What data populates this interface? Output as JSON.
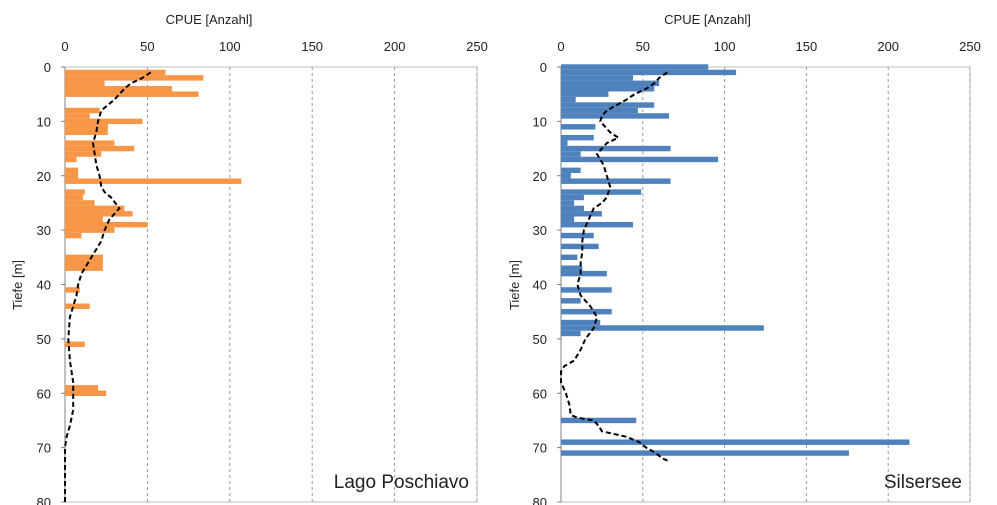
{
  "chart_data": [
    {
      "type": "bar",
      "orientation": "horizontal",
      "panel_label": "Lago Poschiavo",
      "xlabel": "CPUE  [Anzahl]",
      "ylabel": "Tiefe [m]",
      "xlim": [
        0,
        250
      ],
      "ylim": [
        80,
        0
      ],
      "x_ticks": [
        "0",
        "50",
        "100",
        "150",
        "200",
        "250"
      ],
      "y_ticks": [
        "0",
        "10",
        "20",
        "30",
        "40",
        "50",
        "60",
        "70",
        "80"
      ],
      "x_gridlines": true,
      "bar_color": "#F79646",
      "bars": [
        {
          "depth": 1,
          "value": 61
        },
        {
          "depth": 2,
          "value": 84
        },
        {
          "depth": 3,
          "value": 24
        },
        {
          "depth": 4,
          "value": 65
        },
        {
          "depth": 5,
          "value": 81
        },
        {
          "depth": 8,
          "value": 21
        },
        {
          "depth": 9,
          "value": 15
        },
        {
          "depth": 10,
          "value": 47
        },
        {
          "depth": 11,
          "value": 26
        },
        {
          "depth": 12,
          "value": 26
        },
        {
          "depth": 14,
          "value": 30
        },
        {
          "depth": 15,
          "value": 42
        },
        {
          "depth": 16,
          "value": 22
        },
        {
          "depth": 17,
          "value": 7
        },
        {
          "depth": 19,
          "value": 8
        },
        {
          "depth": 20,
          "value": 8
        },
        {
          "depth": 21,
          "value": 107
        },
        {
          "depth": 23,
          "value": 12
        },
        {
          "depth": 24,
          "value": 11
        },
        {
          "depth": 25,
          "value": 18
        },
        {
          "depth": 26,
          "value": 36
        },
        {
          "depth": 27,
          "value": 41
        },
        {
          "depth": 28,
          "value": 23
        },
        {
          "depth": 29,
          "value": 50
        },
        {
          "depth": 30,
          "value": 30
        },
        {
          "depth": 31,
          "value": 10
        },
        {
          "depth": 35,
          "value": 23
        },
        {
          "depth": 36,
          "value": 23
        },
        {
          "depth": 37,
          "value": 23
        },
        {
          "depth": 41,
          "value": 9
        },
        {
          "depth": 44,
          "value": 15
        },
        {
          "depth": 51,
          "value": 12
        },
        {
          "depth": 59,
          "value": 20
        },
        {
          "depth": 60,
          "value": 25
        }
      ],
      "mean_line": {
        "style": "dashed",
        "color": "#000000",
        "points": [
          [
            52,
            1
          ],
          [
            47,
            2
          ],
          [
            40,
            3
          ],
          [
            36,
            4
          ],
          [
            33,
            5
          ],
          [
            30,
            6
          ],
          [
            26,
            7
          ],
          [
            22,
            8
          ],
          [
            20,
            10
          ],
          [
            19,
            12
          ],
          [
            17,
            14
          ],
          [
            18,
            16
          ],
          [
            19,
            18
          ],
          [
            21,
            20
          ],
          [
            22,
            22
          ],
          [
            24,
            23
          ],
          [
            28,
            24
          ],
          [
            33,
            26
          ],
          [
            27,
            28
          ],
          [
            24,
            30
          ],
          [
            22,
            32
          ],
          [
            18,
            34
          ],
          [
            14,
            36
          ],
          [
            10,
            38
          ],
          [
            8,
            40
          ],
          [
            7,
            42
          ],
          [
            5,
            44
          ],
          [
            3,
            46
          ],
          [
            2,
            50
          ],
          [
            3,
            54
          ],
          [
            5,
            58
          ],
          [
            5,
            60
          ],
          [
            5,
            63
          ],
          [
            3,
            66
          ],
          [
            1,
            68
          ],
          [
            0,
            70
          ],
          [
            0,
            75
          ],
          [
            0,
            80
          ]
        ]
      }
    },
    {
      "type": "bar",
      "orientation": "horizontal",
      "panel_label": "Silsersee",
      "xlabel": "CPUE  [Anzahl]",
      "ylabel": "Tiefe [m]",
      "xlim": [
        0,
        250
      ],
      "ylim": [
        80,
        0
      ],
      "x_ticks": [
        "0",
        "50",
        "100",
        "150",
        "200",
        "250"
      ],
      "y_ticks": [
        "0",
        "10",
        "20",
        "30",
        "40",
        "50",
        "60",
        "70",
        "80"
      ],
      "x_gridlines": true,
      "bar_color": "#4F81BD",
      "bars": [
        {
          "depth": 0,
          "value": 90
        },
        {
          "depth": 1,
          "value": 107
        },
        {
          "depth": 2,
          "value": 44
        },
        {
          "depth": 3,
          "value": 60
        },
        {
          "depth": 4,
          "value": 57
        },
        {
          "depth": 5,
          "value": 29
        },
        {
          "depth": 6,
          "value": 9
        },
        {
          "depth": 7,
          "value": 57
        },
        {
          "depth": 8,
          "value": 47
        },
        {
          "depth": 9,
          "value": 66
        },
        {
          "depth": 11,
          "value": 21
        },
        {
          "depth": 13,
          "value": 20
        },
        {
          "depth": 14,
          "value": 4
        },
        {
          "depth": 15,
          "value": 67
        },
        {
          "depth": 16,
          "value": 12
        },
        {
          "depth": 17,
          "value": 96
        },
        {
          "depth": 19,
          "value": 12
        },
        {
          "depth": 20,
          "value": 6
        },
        {
          "depth": 21,
          "value": 67
        },
        {
          "depth": 23,
          "value": 49
        },
        {
          "depth": 24,
          "value": 14
        },
        {
          "depth": 25,
          "value": 8
        },
        {
          "depth": 26,
          "value": 14
        },
        {
          "depth": 27,
          "value": 25
        },
        {
          "depth": 28,
          "value": 8
        },
        {
          "depth": 29,
          "value": 44
        },
        {
          "depth": 31,
          "value": 20
        },
        {
          "depth": 33,
          "value": 23
        },
        {
          "depth": 35,
          "value": 10
        },
        {
          "depth": 37,
          "value": 13
        },
        {
          "depth": 38,
          "value": 28
        },
        {
          "depth": 41,
          "value": 31
        },
        {
          "depth": 43,
          "value": 12
        },
        {
          "depth": 45,
          "value": 31
        },
        {
          "depth": 47,
          "value": 24
        },
        {
          "depth": 48,
          "value": 124
        },
        {
          "depth": 49,
          "value": 12
        },
        {
          "depth": 65,
          "value": 46
        },
        {
          "depth": 69,
          "value": 213
        },
        {
          "depth": 71,
          "value": 176
        }
      ],
      "mean_line": {
        "style": "dashed",
        "color": "#000000",
        "points": [
          [
            65,
            1
          ],
          [
            60,
            2
          ],
          [
            57,
            3
          ],
          [
            52,
            4
          ],
          [
            45,
            5
          ],
          [
            40,
            6
          ],
          [
            34,
            7
          ],
          [
            28,
            8
          ],
          [
            25,
            9
          ],
          [
            24,
            10
          ],
          [
            27,
            11
          ],
          [
            30,
            12
          ],
          [
            35,
            13
          ],
          [
            28,
            14
          ],
          [
            25,
            15
          ],
          [
            22,
            16
          ],
          [
            26,
            18
          ],
          [
            28,
            20
          ],
          [
            30,
            22
          ],
          [
            28,
            24
          ],
          [
            25,
            25
          ],
          [
            20,
            26
          ],
          [
            17,
            28
          ],
          [
            14,
            30
          ],
          [
            13,
            32
          ],
          [
            13,
            34
          ],
          [
            12,
            36
          ],
          [
            12,
            38
          ],
          [
            10,
            40
          ],
          [
            12,
            42
          ],
          [
            18,
            44
          ],
          [
            22,
            46
          ],
          [
            20,
            48
          ],
          [
            15,
            50
          ],
          [
            12,
            52
          ],
          [
            8,
            54
          ],
          [
            2,
            55
          ],
          [
            0,
            56
          ],
          [
            0,
            58
          ],
          [
            3,
            60
          ],
          [
            5,
            62
          ],
          [
            6,
            64
          ],
          [
            10,
            64.5
          ],
          [
            20,
            65
          ],
          [
            23,
            66
          ],
          [
            25,
            67
          ],
          [
            40,
            68
          ],
          [
            48,
            69
          ],
          [
            52,
            70
          ],
          [
            58,
            71
          ],
          [
            62,
            72
          ],
          [
            66,
            72.5
          ]
        ]
      }
    }
  ]
}
